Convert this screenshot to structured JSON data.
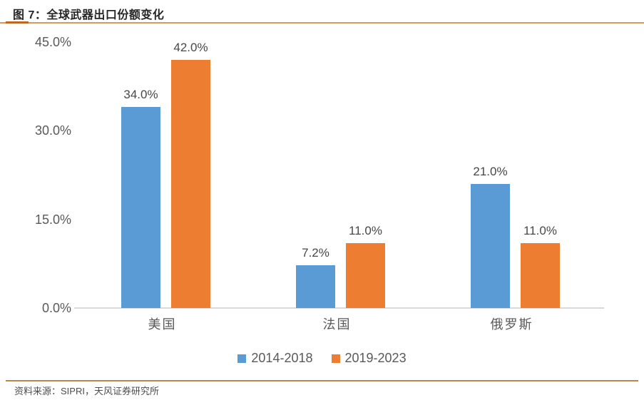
{
  "header": {
    "title": "图 7：全球武器出口份额变化"
  },
  "footer": {
    "source": "资料来源：SIPRI，天风证券研究所"
  },
  "colors": {
    "series1_blue": "#5B9BD5",
    "series2_orange": "#ED7D31",
    "title_rule_thin": "#D99A5E",
    "title_rule_accent": "#C1661E",
    "bottom_rule": "#BC854B",
    "axis_line": "#D9D9D9",
    "chart_text_gray": "#595959"
  },
  "chart_data": {
    "type": "bar",
    "title": "图 7：全球武器出口份额变化",
    "categories": [
      "美国",
      "法国",
      "俄罗斯"
    ],
    "series": [
      {
        "name": "2014-2018",
        "color": "#5B9BD5",
        "values": [
          34.0,
          7.2,
          21.0
        ]
      },
      {
        "name": "2019-2023",
        "color": "#ED7D31",
        "values": [
          42.0,
          11.0,
          11.0
        ]
      }
    ],
    "value_labels": {
      "s0": [
        "34.0%",
        "7.2%",
        "21.0%"
      ],
      "s1": [
        "42.0%",
        "11.0%",
        "11.0%"
      ]
    },
    "ylabel": "",
    "xlabel": "",
    "ylim": [
      0,
      45
    ],
    "yticks": [
      "45.0%",
      "30.0%",
      "15.0%",
      "0.0%"
    ],
    "grid": false,
    "legend_position": "bottom"
  }
}
